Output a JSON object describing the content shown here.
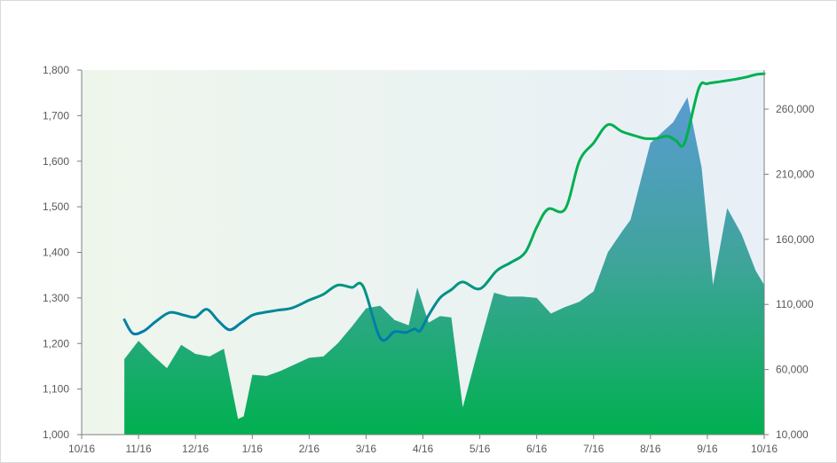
{
  "chart_data": {
    "type": "line+area",
    "title": "",
    "xlabel": "",
    "ylabel_left": "",
    "ylabel_right": "",
    "x_ticks": [
      "10/16",
      "11/16",
      "12/16",
      "1/16",
      "2/16",
      "3/16",
      "4/16",
      "5/16",
      "6/16",
      "7/16",
      "8/16",
      "9/16",
      "10/16"
    ],
    "ylim_left": [
      1000,
      1800
    ],
    "ylim_right": [
      10000,
      290000
    ],
    "y_ticks_left": [
      "1,000",
      "1,100",
      "1,200",
      "1,300",
      "1,400",
      "1,500",
      "1,600",
      "1,700",
      "1,800"
    ],
    "y_ticks_right": [
      "10,000",
      "60,000",
      "110,000",
      "160,000",
      "210,000",
      "260,000"
    ],
    "y_tick_values_left": [
      1000,
      1100,
      1200,
      1300,
      1400,
      1500,
      1600,
      1700,
      1800
    ],
    "y_tick_values_right": [
      10000,
      60000,
      110000,
      160000,
      210000,
      260000
    ],
    "area_series": {
      "axis": "right",
      "x": [
        0.75,
        1.0,
        1.25,
        1.5,
        1.75,
        2.0,
        2.25,
        2.5,
        2.75,
        2.85,
        3.0,
        3.25,
        3.5,
        3.75,
        4.0,
        4.25,
        4.5,
        4.75,
        5.0,
        5.25,
        5.5,
        5.75,
        5.9,
        6.1,
        6.3,
        6.5,
        6.7,
        6.95,
        7.25,
        7.5,
        7.75,
        8.0,
        8.25,
        8.5,
        8.75,
        9.0,
        9.25,
        9.5,
        9.65,
        10.0,
        10.2,
        10.4,
        10.65,
        10.9,
        11.1,
        11.35,
        11.6,
        11.85,
        12.0
      ],
      "y": [
        68000,
        82000,
        71000,
        61000,
        79000,
        72000,
        70000,
        76000,
        22000,
        24000,
        56000,
        55000,
        59000,
        64000,
        69000,
        70000,
        80000,
        93000,
        107000,
        109000,
        98000,
        94000,
        123000,
        96000,
        101000,
        100000,
        31000,
        72000,
        119000,
        116000,
        116000,
        115000,
        103000,
        108000,
        112000,
        120000,
        150000,
        166000,
        175000,
        234000,
        242000,
        250000,
        269000,
        215000,
        125000,
        184000,
        164000,
        136000,
        125000
      ]
    },
    "line_series": {
      "axis": "left",
      "x": [
        0.75,
        0.9,
        1.1,
        1.3,
        1.55,
        1.8,
        2.0,
        2.2,
        2.4,
        2.6,
        2.8,
        3.0,
        3.2,
        3.45,
        3.7,
        4.0,
        4.25,
        4.5,
        4.75,
        4.95,
        5.25,
        5.5,
        5.7,
        5.85,
        5.95,
        6.1,
        6.3,
        6.5,
        6.7,
        7.0,
        7.3,
        7.55,
        7.8,
        8.0,
        8.2,
        8.5,
        8.75,
        9.0,
        9.25,
        9.5,
        9.75,
        9.9,
        10.1,
        10.3,
        10.45,
        10.6,
        10.85,
        11.0,
        11.25,
        11.5,
        11.7,
        11.85,
        12.0
      ],
      "y": [
        1252,
        1222,
        1228,
        1248,
        1268,
        1262,
        1258,
        1275,
        1250,
        1230,
        1245,
        1262,
        1268,
        1273,
        1278,
        1295,
        1308,
        1328,
        1323,
        1325,
        1212,
        1226,
        1224,
        1232,
        1228,
        1262,
        1300,
        1318,
        1335,
        1320,
        1360,
        1378,
        1400,
        1455,
        1495,
        1495,
        1600,
        1640,
        1680,
        1665,
        1655,
        1650,
        1650,
        1655,
        1645,
        1640,
        1760,
        1770,
        1775,
        1780,
        1785,
        1790,
        1792
      ]
    },
    "colors": {
      "area_bottom": "#00b050",
      "area_mid": "#3fa49b",
      "area_top": "#5b9bd5",
      "line_start": "#0070c0",
      "line_end": "#00b050",
      "plot_bg_left": "#eef6ec",
      "plot_bg_right": "#e8eff7",
      "axis": "#7f7f7f",
      "tick_text": "#595959"
    },
    "grid": false,
    "legend": "none"
  }
}
